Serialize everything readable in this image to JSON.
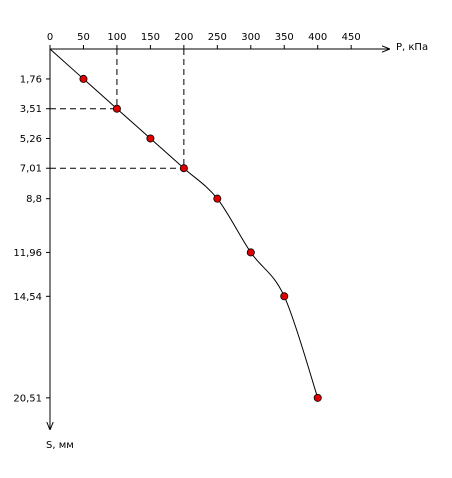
{
  "chart_data": {
    "type": "line",
    "x_label": "P, кПа",
    "y_label": "S, мм",
    "x": [
      50,
      100,
      150,
      200,
      250,
      300,
      350,
      400
    ],
    "series": [
      {
        "color": "#e00000",
        "values": [
          1.76,
          3.51,
          5.26,
          7.01,
          8.8,
          11.96,
          14.54,
          20.51
        ]
      }
    ],
    "xlim": [
      0,
      508
    ],
    "xticks": [
      0,
      50,
      100,
      150,
      200,
      250,
      300,
      350,
      400,
      450
    ],
    "ylim": [
      0,
      22.4
    ],
    "yticks": [
      {
        "value": 1.76,
        "label": "1,76"
      },
      {
        "value": 3.51,
        "label": "3,51"
      },
      {
        "value": 5.26,
        "label": "5,26"
      },
      {
        "value": 7.01,
        "label": "7,01"
      },
      {
        "value": 8.8,
        "label": "8,8"
      },
      {
        "value": 11.96,
        "label": "11,96"
      },
      {
        "value": 14.54,
        "label": "14,54"
      },
      {
        "value": 20.51,
        "label": "20,51"
      }
    ],
    "y_inverted": true,
    "x_axis_top": true,
    "guide_points": [
      1,
      3
    ]
  }
}
